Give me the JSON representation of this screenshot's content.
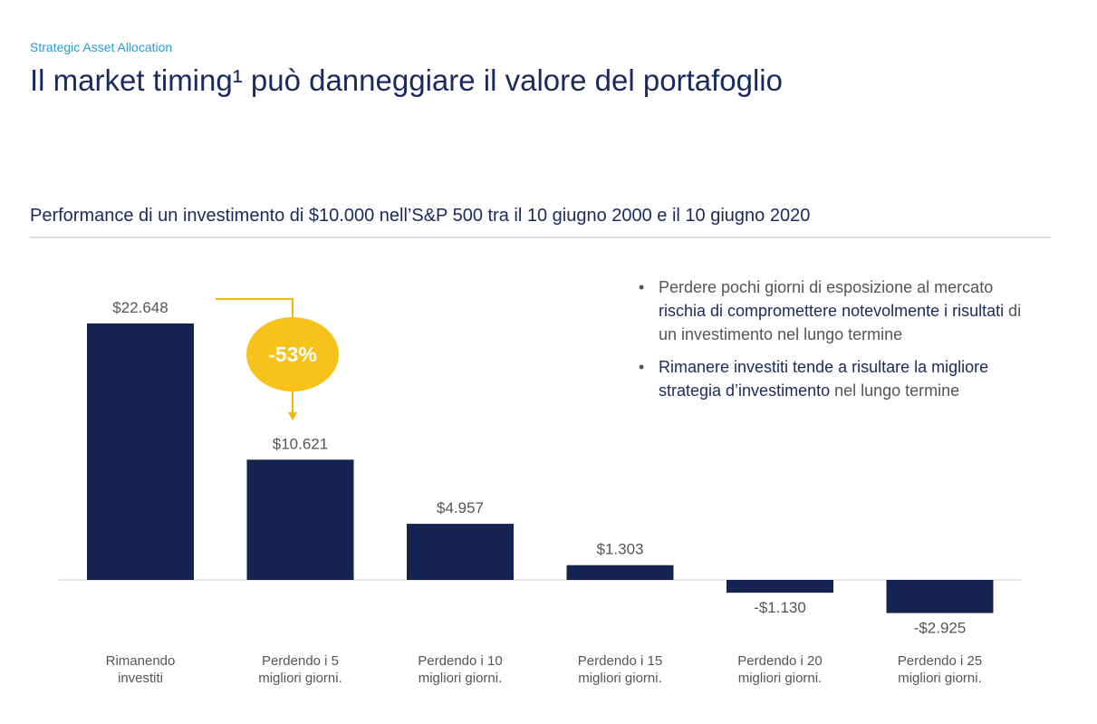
{
  "header": {
    "section": "Strategic Asset Allocation",
    "title": "Il market timing¹ può danneggiare il valore del portafoglio"
  },
  "chart_data": {
    "type": "bar",
    "title": "Performance di un investimento di $10.000 nell’S&P 500 tra il 10 giugno 2000 e il 10 giugno 2020",
    "categories": [
      "Rimanendo investiti",
      "Perdendo i 5 migliori giorni.",
      "Perdendo i 10 migliori giorni.",
      "Perdendo i 15 migliori giorni.",
      "Perdendo i 20 migliori giorni.",
      "Perdendo i 25 migliori giorni."
    ],
    "values": [
      22648,
      10621,
      4957,
      1303,
      -1130,
      -2925
    ],
    "value_labels": [
      "$22.648",
      "$10.621",
      "$4.957",
      "$1.303",
      "-$1.130",
      "-$2.925"
    ],
    "color": "#14234f",
    "annotation": "-53%"
  },
  "bullets": [
    {
      "segments": [
        {
          "text": "Perdere pochi giorni di esposizione al mercato ",
          "bold": false
        },
        {
          "text": "rischia di compromettere notevolmente i risultati",
          "bold": true
        },
        {
          "text": " di un investimento nel lungo termine",
          "bold": false
        }
      ]
    },
    {
      "segments": [
        {
          "text": "Rimanere investiti tende a risultare la migliore strategia d’investimento",
          "bold": true
        },
        {
          "text": " nel lungo termine",
          "bold": false
        }
      ]
    }
  ]
}
